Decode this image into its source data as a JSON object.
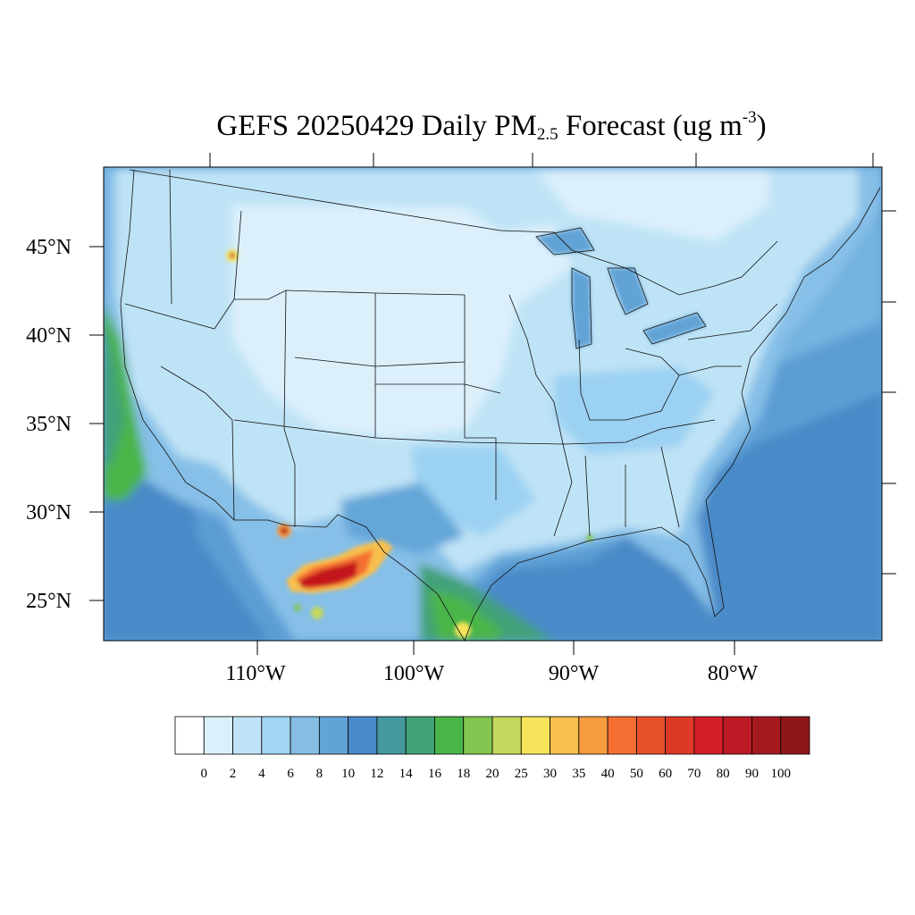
{
  "title": {
    "prefix": "GEFS 20250429 Daily PM",
    "subscript": "2.5",
    "middle": " Forecast (ug m",
    "superscript": "-3",
    "suffix": ")"
  },
  "map": {
    "lat_labels": [
      "45°N",
      "40°N",
      "35°N",
      "30°N",
      "25°N"
    ],
    "lon_labels": [
      "110°W",
      "100°W",
      "90°W",
      "80°W"
    ],
    "field_colors": {
      "ocean_deep": "#4a8ac8",
      "ocean_mid": "#64a6d8",
      "coast_band": "#86bfe7",
      "land_light": "#dcf0fb",
      "land_mid": "#bfe3f6",
      "land_blue": "#9bd1f2",
      "green": "#4bb54a",
      "teal": "#42a178",
      "hotspot_red": "#c3161c",
      "hotspot_orange": "#f5813c",
      "yellow": "#f7e35a"
    }
  },
  "colorbar": {
    "labels": [
      "0",
      "2",
      "4",
      "6",
      "8",
      "10",
      "12",
      "14",
      "16",
      "18",
      "20",
      "25",
      "30",
      "35",
      "40",
      "50",
      "60",
      "70",
      "80",
      "90",
      "100"
    ],
    "colors": [
      "#ffffff",
      "#dcf0fb",
      "#bfe3f6",
      "#a0d5f3",
      "#85bde4",
      "#62a3d6",
      "#4a8ac8",
      "#46999d",
      "#42a178",
      "#4bb54a",
      "#85c651",
      "#c5d85e",
      "#f7e45a",
      "#f8bf4e",
      "#f69b3f",
      "#f46e31",
      "#e8502b",
      "#de3927",
      "#d21f28",
      "#bc1a24",
      "#a51a1f",
      "#8e1719"
    ]
  }
}
